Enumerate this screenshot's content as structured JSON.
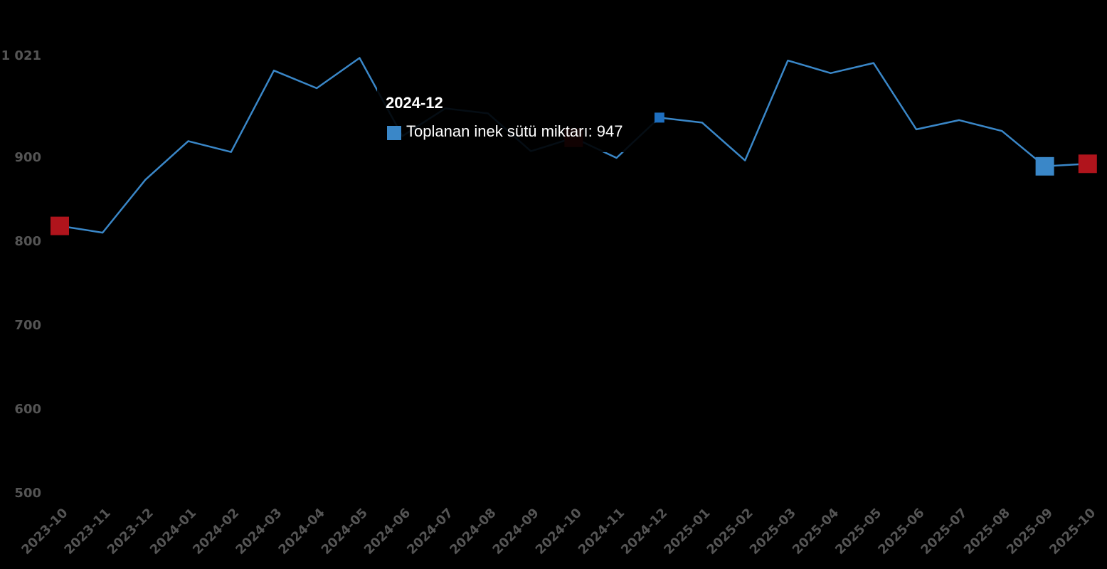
{
  "chart_data": {
    "type": "line",
    "categories": [
      "2023-10",
      "2023-11",
      "2023-12",
      "2024-01",
      "2024-02",
      "2024-03",
      "2024-04",
      "2024-05",
      "2024-06",
      "2024-07",
      "2024-08",
      "2024-09",
      "2024-10",
      "2024-11",
      "2024-12",
      "2025-01",
      "2025-02",
      "2025-03",
      "2025-04",
      "2025-05",
      "2025-06",
      "2025-07",
      "2025-08",
      "2025-09",
      "2025-10"
    ],
    "series": [
      {
        "name": "Toplanan inek sütü miktarı",
        "values": [
          818,
          810,
          873,
          919,
          906,
          1003,
          982,
          1018,
          925,
          958,
          952,
          907,
          923,
          899,
          947,
          941,
          896,
          1015,
          1000,
          1012,
          933,
          944,
          931,
          889,
          892
        ],
        "color": "#3a87c8"
      }
    ],
    "markers": [
      {
        "index": 0,
        "color": "#b0141c",
        "kind": "min-max"
      },
      {
        "index": 12,
        "color": "#b0141c",
        "kind": "min-max"
      },
      {
        "index": 23,
        "color": "#3a87c8",
        "kind": "extreme"
      },
      {
        "index": 24,
        "color": "#b0141c",
        "kind": "last"
      }
    ],
    "ylim": [
      500,
      1021
    ],
    "yticks": [
      "500",
      "600",
      "700",
      "800",
      "900",
      "1 021"
    ],
    "ytick_values": [
      500,
      600,
      700,
      800,
      900,
      1021
    ],
    "grid": false,
    "legend": "none"
  },
  "tooltip": {
    "title": "2024-12",
    "label": "Toplanan inek sütü miktarı: 947",
    "swatch_color": "#3a87c8"
  }
}
